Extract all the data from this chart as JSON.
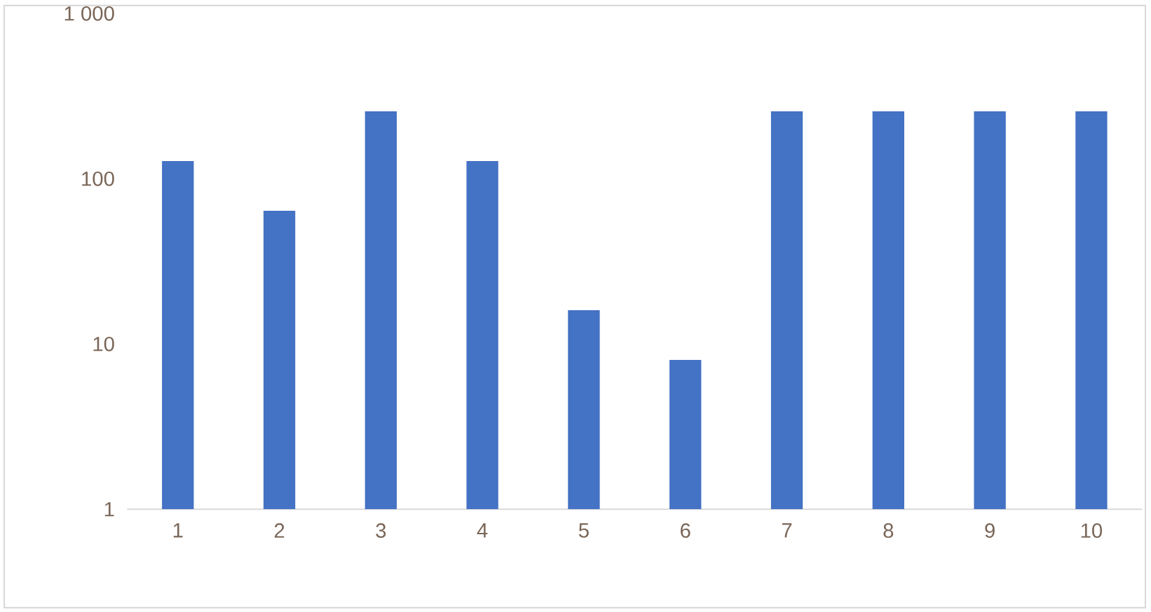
{
  "chart_data": {
    "type": "bar",
    "categories": [
      "1",
      "2",
      "3",
      "4",
      "5",
      "6",
      "7",
      "8",
      "9",
      "10"
    ],
    "values": [
      128,
      64,
      256,
      128,
      16,
      8,
      256,
      256,
      256,
      256
    ],
    "color": "#4472c4",
    "log": "y",
    "ylim": [
      1,
      1000
    ],
    "yticks": [
      1,
      10,
      100,
      {
        "value": 1000,
        "label": "1 000"
      }
    ]
  }
}
